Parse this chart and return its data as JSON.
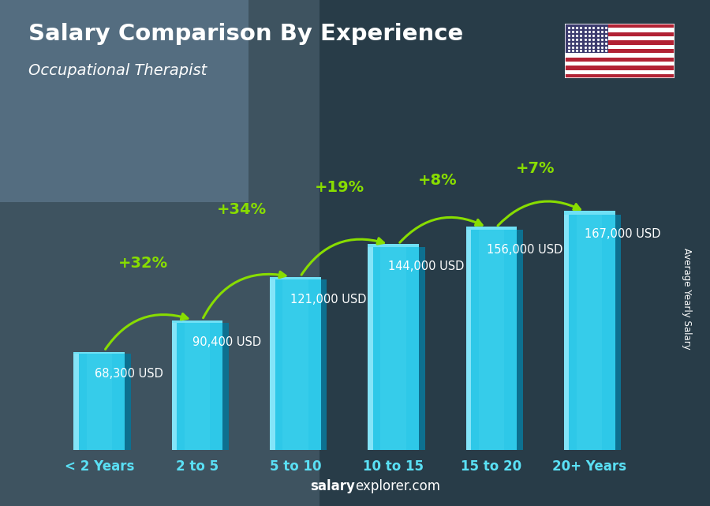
{
  "title": "Salary Comparison By Experience",
  "subtitle": "Occupational Therapist",
  "categories": [
    "< 2 Years",
    "2 to 5",
    "5 to 10",
    "10 to 15",
    "15 to 20",
    "20+ Years"
  ],
  "values": [
    68300,
    90400,
    121000,
    144000,
    156000,
    167000
  ],
  "value_labels": [
    "68,300 USD",
    "90,400 USD",
    "121,000 USD",
    "144,000 USD",
    "156,000 USD",
    "167,000 USD"
  ],
  "pct_changes": [
    "+32%",
    "+34%",
    "+19%",
    "+8%",
    "+7%"
  ],
  "bar_face_color": "#2ec8e8",
  "bar_light_color": "#6fe0f5",
  "bar_dark_color": "#1a9fbe",
  "bar_darker_color": "#0d7090",
  "bar_highlight": "#aaf0ff",
  "bg_color_tl": "#4a6878",
  "bg_color_br": "#2a3a48",
  "text_color_white": "#ffffff",
  "text_color_label": "#dddddd",
  "text_color_green": "#88dd00",
  "ylabel": "Average Yearly Salary",
  "footer_salary": "salary",
  "footer_rest": "explorer.com",
  "ylim": [
    0,
    215000
  ],
  "bar_width": 0.52,
  "flag_stripes_red": "#B22234",
  "flag_canton": "#3C3B6E"
}
